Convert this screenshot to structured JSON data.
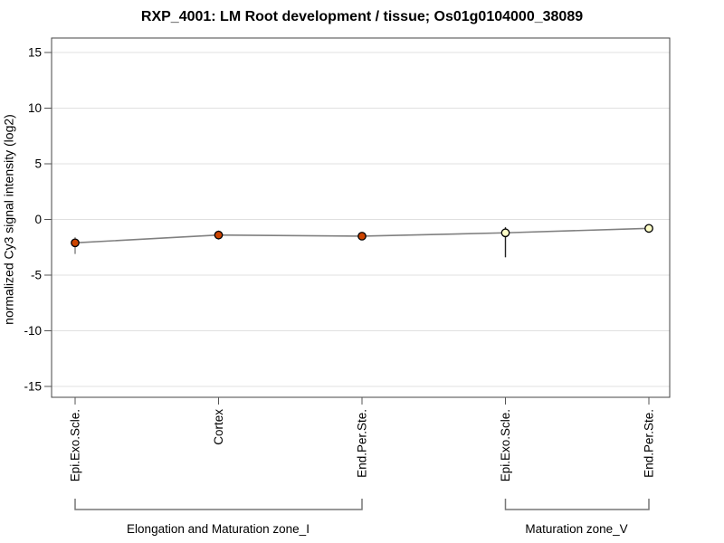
{
  "page": {
    "title": "RXP_4001: LM Root development / tissue; Os01g0104000_38089"
  },
  "chart_data": {
    "type": "line",
    "title": "RXP_4001: LM Root development / tissue; Os01g0104000_38089",
    "xlabel": "",
    "ylabel": "normalized Cy3 signal intensity (log2)",
    "ylim": [
      -16,
      16
    ],
    "yticks": [
      15,
      10,
      5,
      0,
      -5,
      -10,
      -15
    ],
    "grid": true,
    "legend": "none",
    "categories": [
      "Epi.Exo.Scle.",
      "Cortex",
      "End.Per.Ste.",
      "Epi.Exo.Scle.",
      "End.Per.Ste."
    ],
    "values": [
      -2.1,
      -1.4,
      -1.5,
      -1.2,
      -0.8
    ],
    "error_bars": [
      [
        -3.1,
        -1.6
      ],
      [
        -1.8,
        -1.0
      ],
      [
        -1.7,
        -1.3
      ],
      [
        -3.4,
        -0.7
      ],
      null
    ],
    "point_fills": [
      "#cc4400",
      "#cc4400",
      "#cc4400",
      "#ffffc8",
      "#ffffc8"
    ],
    "point_stroke": "#000000",
    "error_bar_colors": [
      "#808080",
      "#666666",
      "#808080",
      "#222222",
      "#808080"
    ],
    "line_color": "#808080",
    "grid_color": "#e0e0e0",
    "axis_color": "#444444",
    "tick_color": "#555555",
    "bracket_color": "#777777",
    "groups": [
      {
        "label": "Elongation and Maturation zone_I",
        "from": 0,
        "to": 2
      },
      {
        "label": "Maturation zone_V",
        "from": 3,
        "to": 4
      }
    ]
  }
}
